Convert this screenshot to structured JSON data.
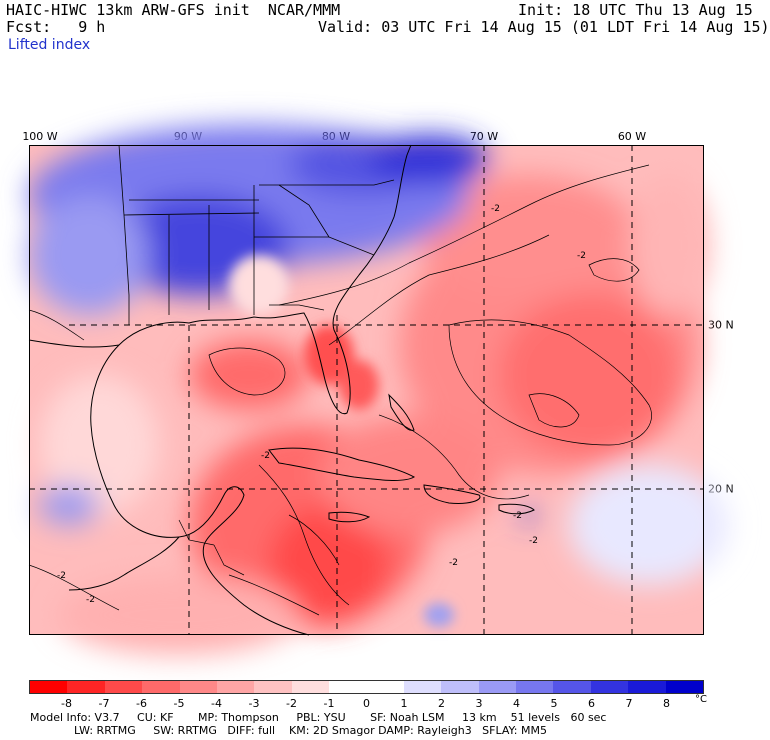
{
  "header": {
    "title_left": "HAIC-HIWC 13km ARW-GFS init  NCAR/MMM",
    "init": "Init: 18 UTC Thu 13 Aug 15",
    "fcst": "Fcst:   9 h",
    "valid": "Valid: 03 UTC Fri 14 Aug 15 (01 LDT Fri 14 Aug 15)",
    "field": "Lifted index"
  },
  "map": {
    "lon_labels": [
      "100 W",
      "90 W",
      "80 W",
      "70 W",
      "60 W"
    ],
    "lat_labels": [
      "30 N",
      "20 N"
    ],
    "contour_labels": [
      "-2",
      "-2",
      "-2",
      "-2",
      "-2",
      "-2",
      "-2",
      "-2"
    ]
  },
  "scale": {
    "ticks": [
      "-8",
      "-7",
      "-6",
      "-5",
      "-4",
      "-3",
      "-2",
      "-1",
      "0",
      "1",
      "2",
      "3",
      "4",
      "5",
      "6",
      "7",
      "8"
    ],
    "unit": "°C",
    "colors": [
      "#ff0000",
      "#ff2525",
      "#ff4a4a",
      "#ff6a6a",
      "#ff8888",
      "#ffa5a5",
      "#ffc2c2",
      "#ffdede",
      "#ffffff",
      "#ffffff",
      "#dedefe",
      "#bebefa",
      "#9a9af5",
      "#7777ef",
      "#5555e8",
      "#3333e0",
      "#1a1ad8",
      "#0000cc"
    ]
  },
  "info": {
    "line1": "Model Info: V3.7     CU: KF       MP: Thompson     PBL: YSU       SF: Noah LSM     13 km    51 levels   60 sec",
    "line2": "LW: RRTMG     SW: RRTMG   DIFF: full    KM: 2D Smagor DAMP: Rayleigh3   SFLAY: MM5"
  }
}
